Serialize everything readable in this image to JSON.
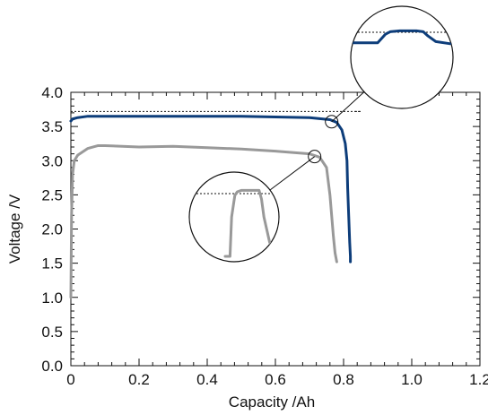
{
  "chart_data": {
    "type": "line",
    "xlabel": "Capacity /Ah",
    "ylabel": "Voltage /V",
    "xlim": [
      0,
      1.2
    ],
    "ylim": [
      0,
      4.0
    ],
    "xticks": [
      0,
      0.2,
      0.4,
      0.6,
      0.8,
      1.0,
      1.2
    ],
    "xtick_labels": [
      "0",
      "0.2",
      "0.4",
      "0.6",
      "0.8",
      "1.0",
      "1.2"
    ],
    "yticks": [
      0,
      0.5,
      1.0,
      1.5,
      2.0,
      2.5,
      3.0,
      3.5,
      4.0
    ],
    "ytick_labels": [
      "0.0",
      "0.5",
      "1.0",
      "1.5",
      "2.0",
      "2.5",
      "3.0",
      "3.5",
      "4.0"
    ],
    "grid": false,
    "series": [
      {
        "color": "#0d3d7a",
        "x": [
          0,
          0.005,
          0.02,
          0.05,
          0.1,
          0.3,
          0.5,
          0.7,
          0.76,
          0.78,
          0.795,
          0.805,
          0.81,
          0.812,
          0.815,
          0.818,
          0.82,
          0.82
        ],
        "y": [
          3.58,
          3.61,
          3.63,
          3.65,
          3.65,
          3.65,
          3.65,
          3.63,
          3.6,
          3.56,
          3.45,
          3.25,
          3.0,
          2.6,
          2.2,
          1.8,
          1.6,
          1.52
        ]
      },
      {
        "color": "#999999",
        "x": [
          0,
          0.002,
          0.005,
          0.01,
          0.02,
          0.05,
          0.08,
          0.1,
          0.2,
          0.3,
          0.4,
          0.5,
          0.6,
          0.7,
          0.73,
          0.75,
          0.755,
          0.76,
          0.765,
          0.77,
          0.775,
          0.78
        ],
        "y": [
          1.0,
          2.2,
          2.8,
          3.0,
          3.08,
          3.18,
          3.22,
          3.22,
          3.2,
          3.21,
          3.19,
          3.17,
          3.14,
          3.1,
          3.05,
          2.9,
          2.7,
          2.5,
          2.2,
          1.9,
          1.65,
          1.52
        ]
      }
    ],
    "reference_line": {
      "y": 3.72,
      "x_from": 0,
      "x_to": 0.85
    },
    "callouts": [
      {
        "marker_at": [
          0.765,
          3.57
        ],
        "stroke_color": "#0d3d7a",
        "zoom_shape_x": [
          0.0,
          0.25,
          0.33,
          0.38,
          0.48,
          0.65,
          0.72,
          0.77,
          0.85,
          1.0
        ],
        "zoom_shape_y": [
          0.42,
          0.42,
          0.62,
          0.68,
          0.7,
          0.7,
          0.68,
          0.58,
          0.45,
          0.4
        ]
      },
      {
        "marker_at": [
          0.715,
          3.06
        ],
        "stroke_color": "#999999",
        "zoom_shape_x": [
          0.3,
          0.36,
          0.38,
          0.42,
          0.45,
          0.5,
          0.6,
          0.72,
          0.75,
          0.78,
          0.85,
          0.9,
          1.0
        ],
        "zoom_shape_y": [
          0.05,
          0.05,
          0.6,
          0.9,
          0.95,
          0.97,
          0.97,
          0.97,
          0.85,
          0.6,
          0.25,
          0.12,
          0.05
        ]
      }
    ]
  }
}
